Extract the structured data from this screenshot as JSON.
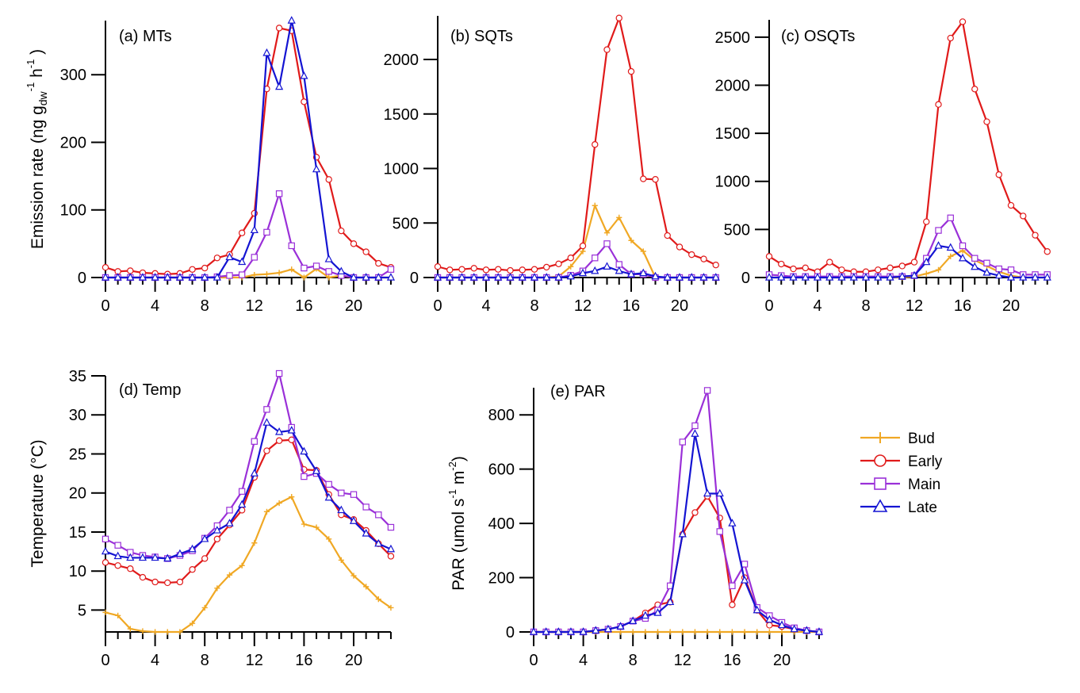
{
  "colors": {
    "Bud": "#f0a824",
    "Early": "#e01a1a",
    "Main": "#9a30d8",
    "Late": "#1414d2"
  },
  "legend": {
    "entries": [
      "Bud",
      "Early",
      "Main",
      "Late"
    ],
    "placement": "right of panel (e)"
  },
  "chart_data": [
    {
      "type": "line",
      "panel": "a",
      "title": "(a) MTs",
      "ylabel": "Emission rate (ng g_dw^-1 h^-1)",
      "ylabel_parts": {
        "main": "Emission rate (ng g",
        "sub": "dw",
        "sup1": "-1",
        "mid": " h",
        "sup2": "-1",
        "end": " )"
      },
      "xlabel": "",
      "xlim": [
        0,
        23
      ],
      "ylim": [
        0,
        380
      ],
      "xticks": [
        0,
        4,
        8,
        12,
        16,
        20
      ],
      "yticks": [
        0,
        100,
        200,
        300
      ],
      "x": [
        0,
        1,
        2,
        3,
        4,
        5,
        6,
        7,
        8,
        9,
        10,
        11,
        12,
        13,
        14,
        15,
        16,
        17,
        18,
        19,
        20,
        21,
        22,
        23
      ],
      "series": [
        {
          "name": "Bud",
          "values": [
            0,
            0,
            0,
            0,
            0,
            0,
            0,
            0,
            0,
            0,
            0,
            0,
            4,
            5,
            7,
            12,
            0,
            13,
            0,
            3,
            0,
            0,
            0,
            0
          ]
        },
        {
          "name": "Early",
          "values": [
            15,
            9,
            10,
            7,
            6,
            5,
            6,
            12,
            14,
            29,
            34,
            66,
            95,
            279,
            369,
            365,
            260,
            178,
            145,
            69,
            50,
            38,
            21,
            15
          ]
        },
        {
          "name": "Main",
          "values": [
            0,
            0,
            0,
            0,
            0,
            0,
            0,
            0,
            0,
            1,
            3,
            4,
            30,
            67,
            124,
            47,
            14,
            17,
            9,
            3,
            0,
            0,
            0,
            12
          ]
        },
        {
          "name": "Late",
          "values": [
            0,
            0,
            0,
            0,
            0,
            0,
            0,
            0,
            0,
            0,
            30,
            23,
            70,
            332,
            282,
            380,
            298,
            160,
            27,
            9,
            0,
            0,
            0,
            0
          ]
        }
      ]
    },
    {
      "type": "line",
      "panel": "b",
      "title": "(b) SQTs",
      "xlabel": "",
      "ylabel": "",
      "xlim": [
        0,
        23
      ],
      "ylim": [
        0,
        2400
      ],
      "xticks": [
        0,
        4,
        8,
        12,
        16,
        20
      ],
      "yticks": [
        0,
        500,
        1000,
        1500,
        2000
      ],
      "x": [
        0,
        1,
        2,
        3,
        4,
        5,
        6,
        7,
        8,
        9,
        10,
        11,
        12,
        13,
        14,
        15,
        16,
        17,
        18,
        19,
        20,
        21,
        22,
        23
      ],
      "series": [
        {
          "name": "Bud",
          "values": [
            0,
            0,
            0,
            0,
            0,
            0,
            0,
            0,
            0,
            0,
            10,
            100,
            240,
            660,
            410,
            550,
            340,
            240,
            0,
            0,
            0,
            0,
            0,
            0
          ]
        },
        {
          "name": "Early",
          "values": [
            100,
            70,
            75,
            85,
            70,
            75,
            65,
            70,
            75,
            95,
            125,
            180,
            290,
            1220,
            2090,
            2380,
            1890,
            905,
            900,
            385,
            280,
            210,
            170,
            115
          ]
        },
        {
          "name": "Main",
          "values": [
            0,
            0,
            0,
            0,
            0,
            0,
            0,
            0,
            0,
            0,
            0,
            20,
            60,
            180,
            310,
            120,
            30,
            30,
            0,
            0,
            0,
            0,
            0,
            0
          ]
        },
        {
          "name": "Late",
          "values": [
            0,
            0,
            0,
            0,
            0,
            0,
            0,
            0,
            0,
            0,
            0,
            10,
            40,
            60,
            100,
            60,
            30,
            40,
            10,
            0,
            0,
            0,
            0,
            0
          ]
        }
      ]
    },
    {
      "type": "line",
      "panel": "c",
      "title": "(c) OSQTs",
      "xlabel": "",
      "ylabel": "",
      "xlim": [
        0,
        23
      ],
      "ylim": [
        0,
        2680
      ],
      "xticks": [
        0,
        4,
        8,
        12,
        16,
        20
      ],
      "yticks": [
        0,
        500,
        1000,
        1500,
        2000,
        2500
      ],
      "x": [
        0,
        1,
        2,
        3,
        4,
        5,
        6,
        7,
        8,
        9,
        10,
        11,
        12,
        13,
        14,
        15,
        16,
        17,
        18,
        19,
        20,
        21,
        22,
        23
      ],
      "series": [
        {
          "name": "Bud",
          "values": [
            0,
            0,
            0,
            0,
            0,
            0,
            0,
            0,
            0,
            0,
            0,
            0,
            10,
            40,
            80,
            220,
            280,
            180,
            120,
            60,
            20,
            0,
            0,
            0
          ]
        },
        {
          "name": "Early",
          "values": [
            220,
            140,
            90,
            100,
            60,
            160,
            80,
            60,
            60,
            80,
            100,
            120,
            160,
            580,
            1800,
            2490,
            2660,
            1960,
            1620,
            1070,
            750,
            640,
            440,
            270
          ]
        },
        {
          "name": "Main",
          "values": [
            30,
            20,
            10,
            10,
            10,
            10,
            10,
            10,
            10,
            10,
            10,
            10,
            20,
            200,
            490,
            620,
            330,
            200,
            150,
            90,
            80,
            30,
            30,
            30
          ]
        },
        {
          "name": "Late",
          "values": [
            0,
            0,
            0,
            0,
            0,
            0,
            0,
            0,
            0,
            0,
            0,
            10,
            20,
            160,
            330,
            310,
            200,
            110,
            50,
            20,
            0,
            0,
            0,
            0
          ]
        }
      ]
    },
    {
      "type": "line",
      "panel": "d",
      "title": "(d) Temp",
      "ylabel": "Temperature (°C)",
      "ylabel_parts": {
        "main": "Temperature (",
        "sup1": "o",
        "end": "C)"
      },
      "xlabel": "",
      "xlim": [
        0,
        23
      ],
      "ylim": [
        2.2,
        35
      ],
      "xticks": [
        0,
        4,
        8,
        12,
        16,
        20
      ],
      "yticks": [
        5,
        10,
        15,
        20,
        25,
        30,
        35
      ],
      "x": [
        0,
        1,
        2,
        3,
        4,
        5,
        6,
        7,
        8,
        9,
        10,
        11,
        12,
        13,
        14,
        15,
        16,
        17,
        18,
        19,
        20,
        21,
        22,
        23
      ],
      "series": [
        {
          "name": "Bud",
          "values": [
            4.7,
            4.3,
            2.6,
            2.3,
            2.2,
            2.2,
            2.2,
            3.3,
            5.3,
            7.8,
            9.5,
            10.7,
            13.6,
            17.6,
            18.7,
            19.5,
            16,
            15.6,
            14.1,
            11.4,
            9.4,
            8,
            6.4,
            5.3
          ]
        },
        {
          "name": "Early",
          "values": [
            11.1,
            10.7,
            10.3,
            9.2,
            8.6,
            8.5,
            8.6,
            10.2,
            11.6,
            14.1,
            15.9,
            17.8,
            22,
            25.4,
            26.7,
            26.8,
            23,
            22.9,
            19.8,
            17.2,
            16.6,
            15.2,
            13.5,
            11.9
          ]
        },
        {
          "name": "Main",
          "values": [
            14.1,
            13.3,
            12.4,
            12,
            11.8,
            11.6,
            12,
            12.6,
            14.2,
            15.8,
            17.8,
            20.2,
            26.6,
            30.7,
            35.3,
            28.4,
            22.1,
            22.5,
            21.1,
            20,
            19.8,
            18.2,
            17.2,
            15.6
          ]
        },
        {
          "name": "Late",
          "values": [
            12.5,
            11.9,
            11.7,
            11.7,
            11.7,
            11.6,
            12.2,
            12.8,
            14.1,
            15.2,
            16.1,
            18.5,
            22.5,
            29,
            27.8,
            28,
            25.3,
            22.8,
            19.4,
            17.8,
            16.4,
            14.8,
            13.5,
            12.8
          ]
        }
      ]
    },
    {
      "type": "line",
      "panel": "e",
      "title": "(e) PAR",
      "ylabel": "PAR (umol s^-1 m^-2)",
      "ylabel_parts": {
        "main": "PAR (umol s",
        "sup1": "-1",
        "mid": " m",
        "sup2": "-2",
        "end": ")"
      },
      "xlabel": "",
      "xlim": [
        0,
        23
      ],
      "ylim": [
        0,
        900
      ],
      "xticks": [
        0,
        4,
        8,
        12,
        16,
        20
      ],
      "yticks": [
        0,
        200,
        400,
        600,
        800
      ],
      "x": [
        0,
        1,
        2,
        3,
        4,
        5,
        6,
        7,
        8,
        9,
        10,
        11,
        12,
        13,
        14,
        15,
        16,
        17,
        18,
        19,
        20,
        21,
        22,
        23
      ],
      "series": [
        {
          "name": "Bud",
          "values": [
            0,
            0,
            0,
            0,
            0,
            0,
            0,
            0,
            0,
            0,
            0,
            0,
            0,
            0,
            0,
            0,
            0,
            0,
            0,
            0,
            0,
            0,
            0,
            0
          ]
        },
        {
          "name": "Early",
          "values": [
            0,
            0,
            0,
            0,
            0,
            5,
            10,
            20,
            40,
            70,
            100,
            110,
            360,
            440,
            500,
            420,
            100,
            200,
            80,
            25,
            20,
            10,
            5,
            0
          ]
        },
        {
          "name": "Main",
          "values": [
            0,
            0,
            0,
            0,
            0,
            5,
            10,
            20,
            40,
            50,
            80,
            170,
            700,
            760,
            890,
            370,
            170,
            250,
            90,
            60,
            35,
            15,
            5,
            0
          ]
        },
        {
          "name": "Late",
          "values": [
            0,
            0,
            0,
            0,
            0,
            5,
            10,
            20,
            40,
            60,
            70,
            110,
            360,
            730,
            510,
            510,
            400,
            190,
            80,
            45,
            25,
            10,
            5,
            0
          ]
        }
      ]
    }
  ]
}
